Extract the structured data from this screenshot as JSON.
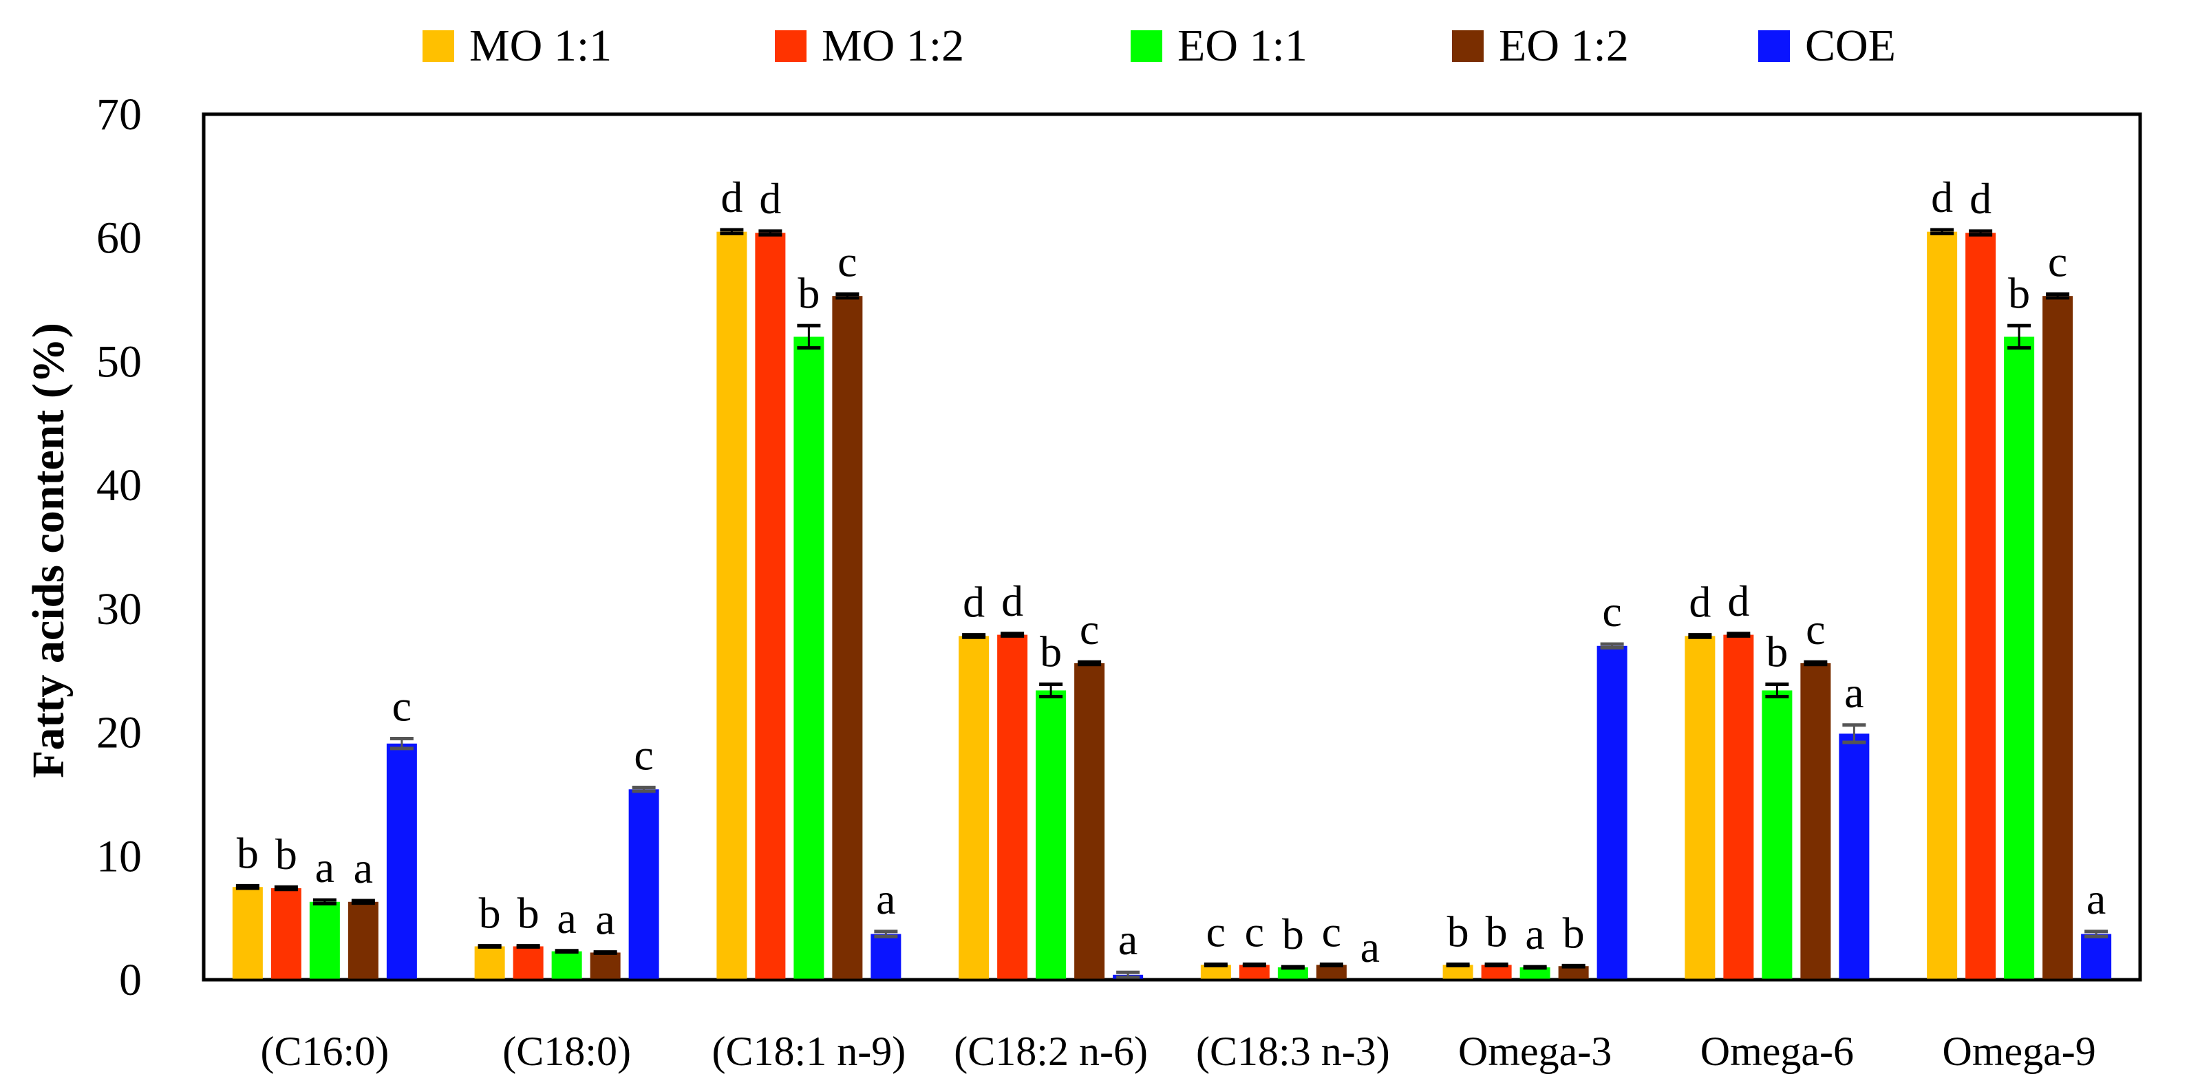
{
  "chart_data": {
    "type": "bar",
    "title": "",
    "xlabel": "",
    "ylabel": "Fatty acids content (%)",
    "ylim": [
      0,
      70
    ],
    "yticks": [
      "0",
      "10",
      "20",
      "30",
      "40",
      "50",
      "60",
      "70"
    ],
    "grid": false,
    "legend_position": "top",
    "categories": [
      "(C16:0)",
      "(C18:0)",
      "(C18:1 n-9)",
      "(C18:2 n-6)",
      "(C18:3 n-3)",
      "Omega-3",
      "Omega-6",
      "Omega-9"
    ],
    "series": [
      {
        "name": "MO 1:1",
        "color": "#FFC000",
        "values": [
          7.5,
          2.7,
          60.5,
          27.8,
          1.2,
          1.2,
          27.8,
          60.5
        ],
        "errors": [
          0.1,
          0.05,
          0.15,
          0.1,
          0.05,
          0.05,
          0.1,
          0.15
        ],
        "letters": [
          "b",
          "b",
          "d",
          "d",
          "c",
          "b",
          "d",
          "d"
        ]
      },
      {
        "name": "MO 1:2",
        "color": "#FF3300",
        "values": [
          7.4,
          2.7,
          60.4,
          27.9,
          1.2,
          1.2,
          27.9,
          60.4
        ],
        "errors": [
          0.1,
          0.05,
          0.15,
          0.1,
          0.05,
          0.05,
          0.1,
          0.15
        ],
        "letters": [
          "b",
          "b",
          "d",
          "d",
          "c",
          "b",
          "d",
          "d"
        ]
      },
      {
        "name": "EO 1:1",
        "color": "#00FF00",
        "values": [
          6.3,
          2.3,
          52.0,
          23.4,
          1.0,
          1.0,
          23.4,
          52.0
        ],
        "errors": [
          0.15,
          0.05,
          0.9,
          0.5,
          0.05,
          0.05,
          0.5,
          0.9
        ],
        "letters": [
          "a",
          "a",
          "b",
          "b",
          "b",
          "a",
          "b",
          "b"
        ]
      },
      {
        "name": "EO 1:2",
        "color": "#7A2E00",
        "values": [
          6.3,
          2.2,
          55.3,
          25.6,
          1.2,
          1.1,
          25.6,
          55.3
        ],
        "errors": [
          0.1,
          0.05,
          0.15,
          0.1,
          0.05,
          0.05,
          0.1,
          0.15
        ],
        "letters": [
          "a",
          "a",
          "c",
          "c",
          "c",
          "b",
          "c",
          "c"
        ]
      },
      {
        "name": "COE",
        "color": "#0A14FF",
        "values": [
          19.1,
          15.4,
          3.7,
          0.4,
          0.0,
          27.0,
          19.9,
          3.7
        ],
        "errors": [
          0.4,
          0.15,
          0.2,
          0.2,
          0.0,
          0.15,
          0.7,
          0.2
        ],
        "letters": [
          "c",
          "c",
          "a",
          "a",
          "a",
          "c",
          "a",
          "a"
        ]
      }
    ]
  }
}
